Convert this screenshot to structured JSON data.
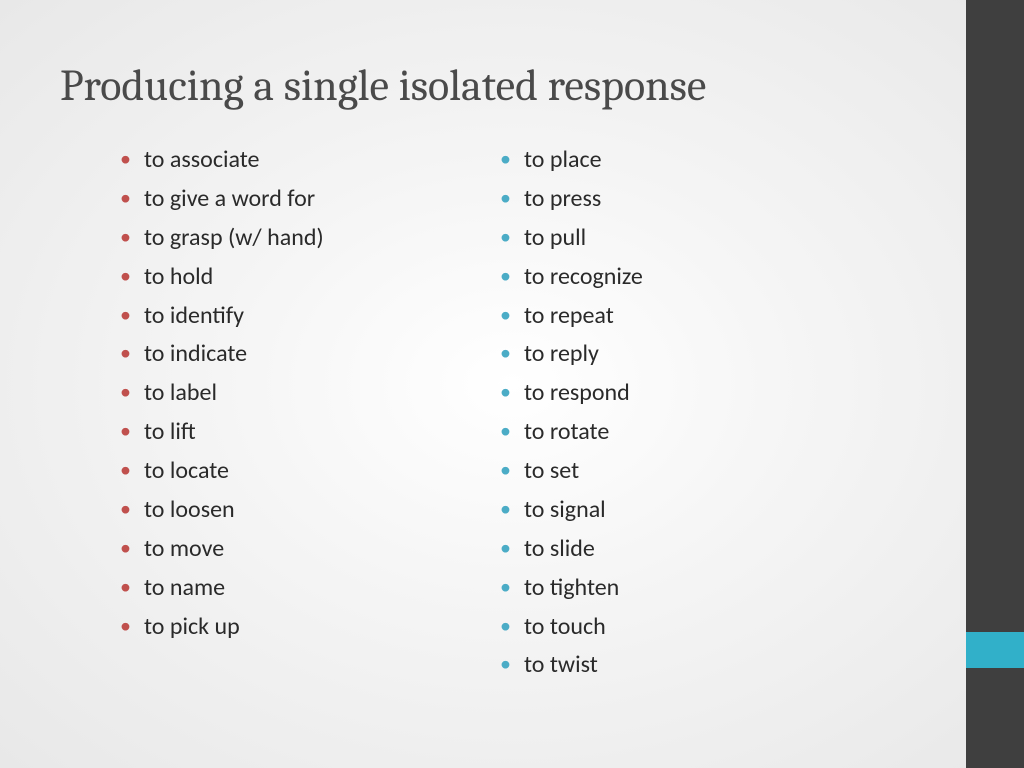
{
  "title": "Producing a single isolated response",
  "columns": {
    "left": {
      "bullet_color": "#c0504d",
      "items": [
        "to associate",
        "to give a word for",
        "to grasp (w/ hand)",
        "to hold",
        "to identify",
        "to indicate",
        "to label",
        "to lift",
        "to locate",
        "to loosen",
        "to move",
        "to name",
        "to pick up"
      ]
    },
    "right": {
      "bullet_color": "#4bacc6",
      "items": [
        "to place",
        "to press",
        "to pull",
        "to recognize",
        "to repeat",
        "to reply",
        "to respond",
        "to rotate",
        "to set",
        "to signal",
        "to slide",
        "to tighten",
        "to touch",
        "to twist"
      ]
    }
  },
  "style": {
    "title_color": "#4a4a4a",
    "title_fontsize": 44,
    "body_fontsize": 24,
    "body_color": "#2a2a2a",
    "sidebar_color": "#3f3f3f",
    "accent_color": "#31b0c9",
    "background": "radial-gradient white to light gray"
  }
}
